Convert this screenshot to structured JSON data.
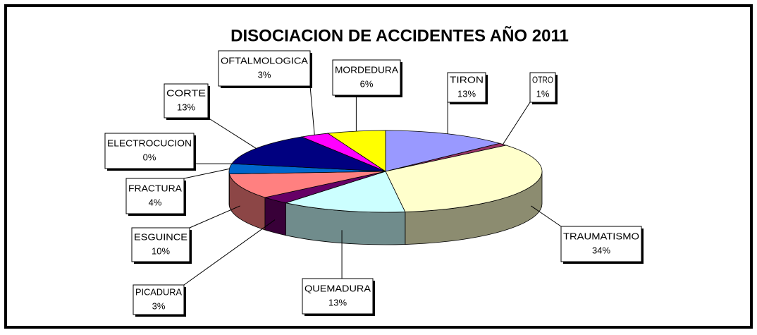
{
  "chart_data": {
    "type": "pie3d",
    "title": "DISOCIACION DE ACCIDENTES AÑO 2011",
    "categories": [
      "TIRON",
      "OTRO",
      "TRAUMATISMO",
      "QUEMADURA",
      "PICADURA",
      "ESGUINCE",
      "FRACTURA",
      "ELECTROCUCION",
      "CORTE",
      "OFTALMOLOGICA",
      "MORDEDURA"
    ],
    "values": [
      13,
      1,
      34,
      13,
      3,
      10,
      4,
      0,
      13,
      3,
      6
    ],
    "value_labels": [
      "13%",
      "1%",
      "34%",
      "13%",
      "3%",
      "10%",
      "4%",
      "0%",
      "13%",
      "3%",
      "6%"
    ],
    "colors": [
      "#9999ff",
      "#993366",
      "#ffffcc",
      "#ccffff",
      "#660066",
      "#ff8080",
      "#0066cc",
      "#ccccff",
      "#000080",
      "#ff00ff",
      "#ffff00"
    ]
  }
}
